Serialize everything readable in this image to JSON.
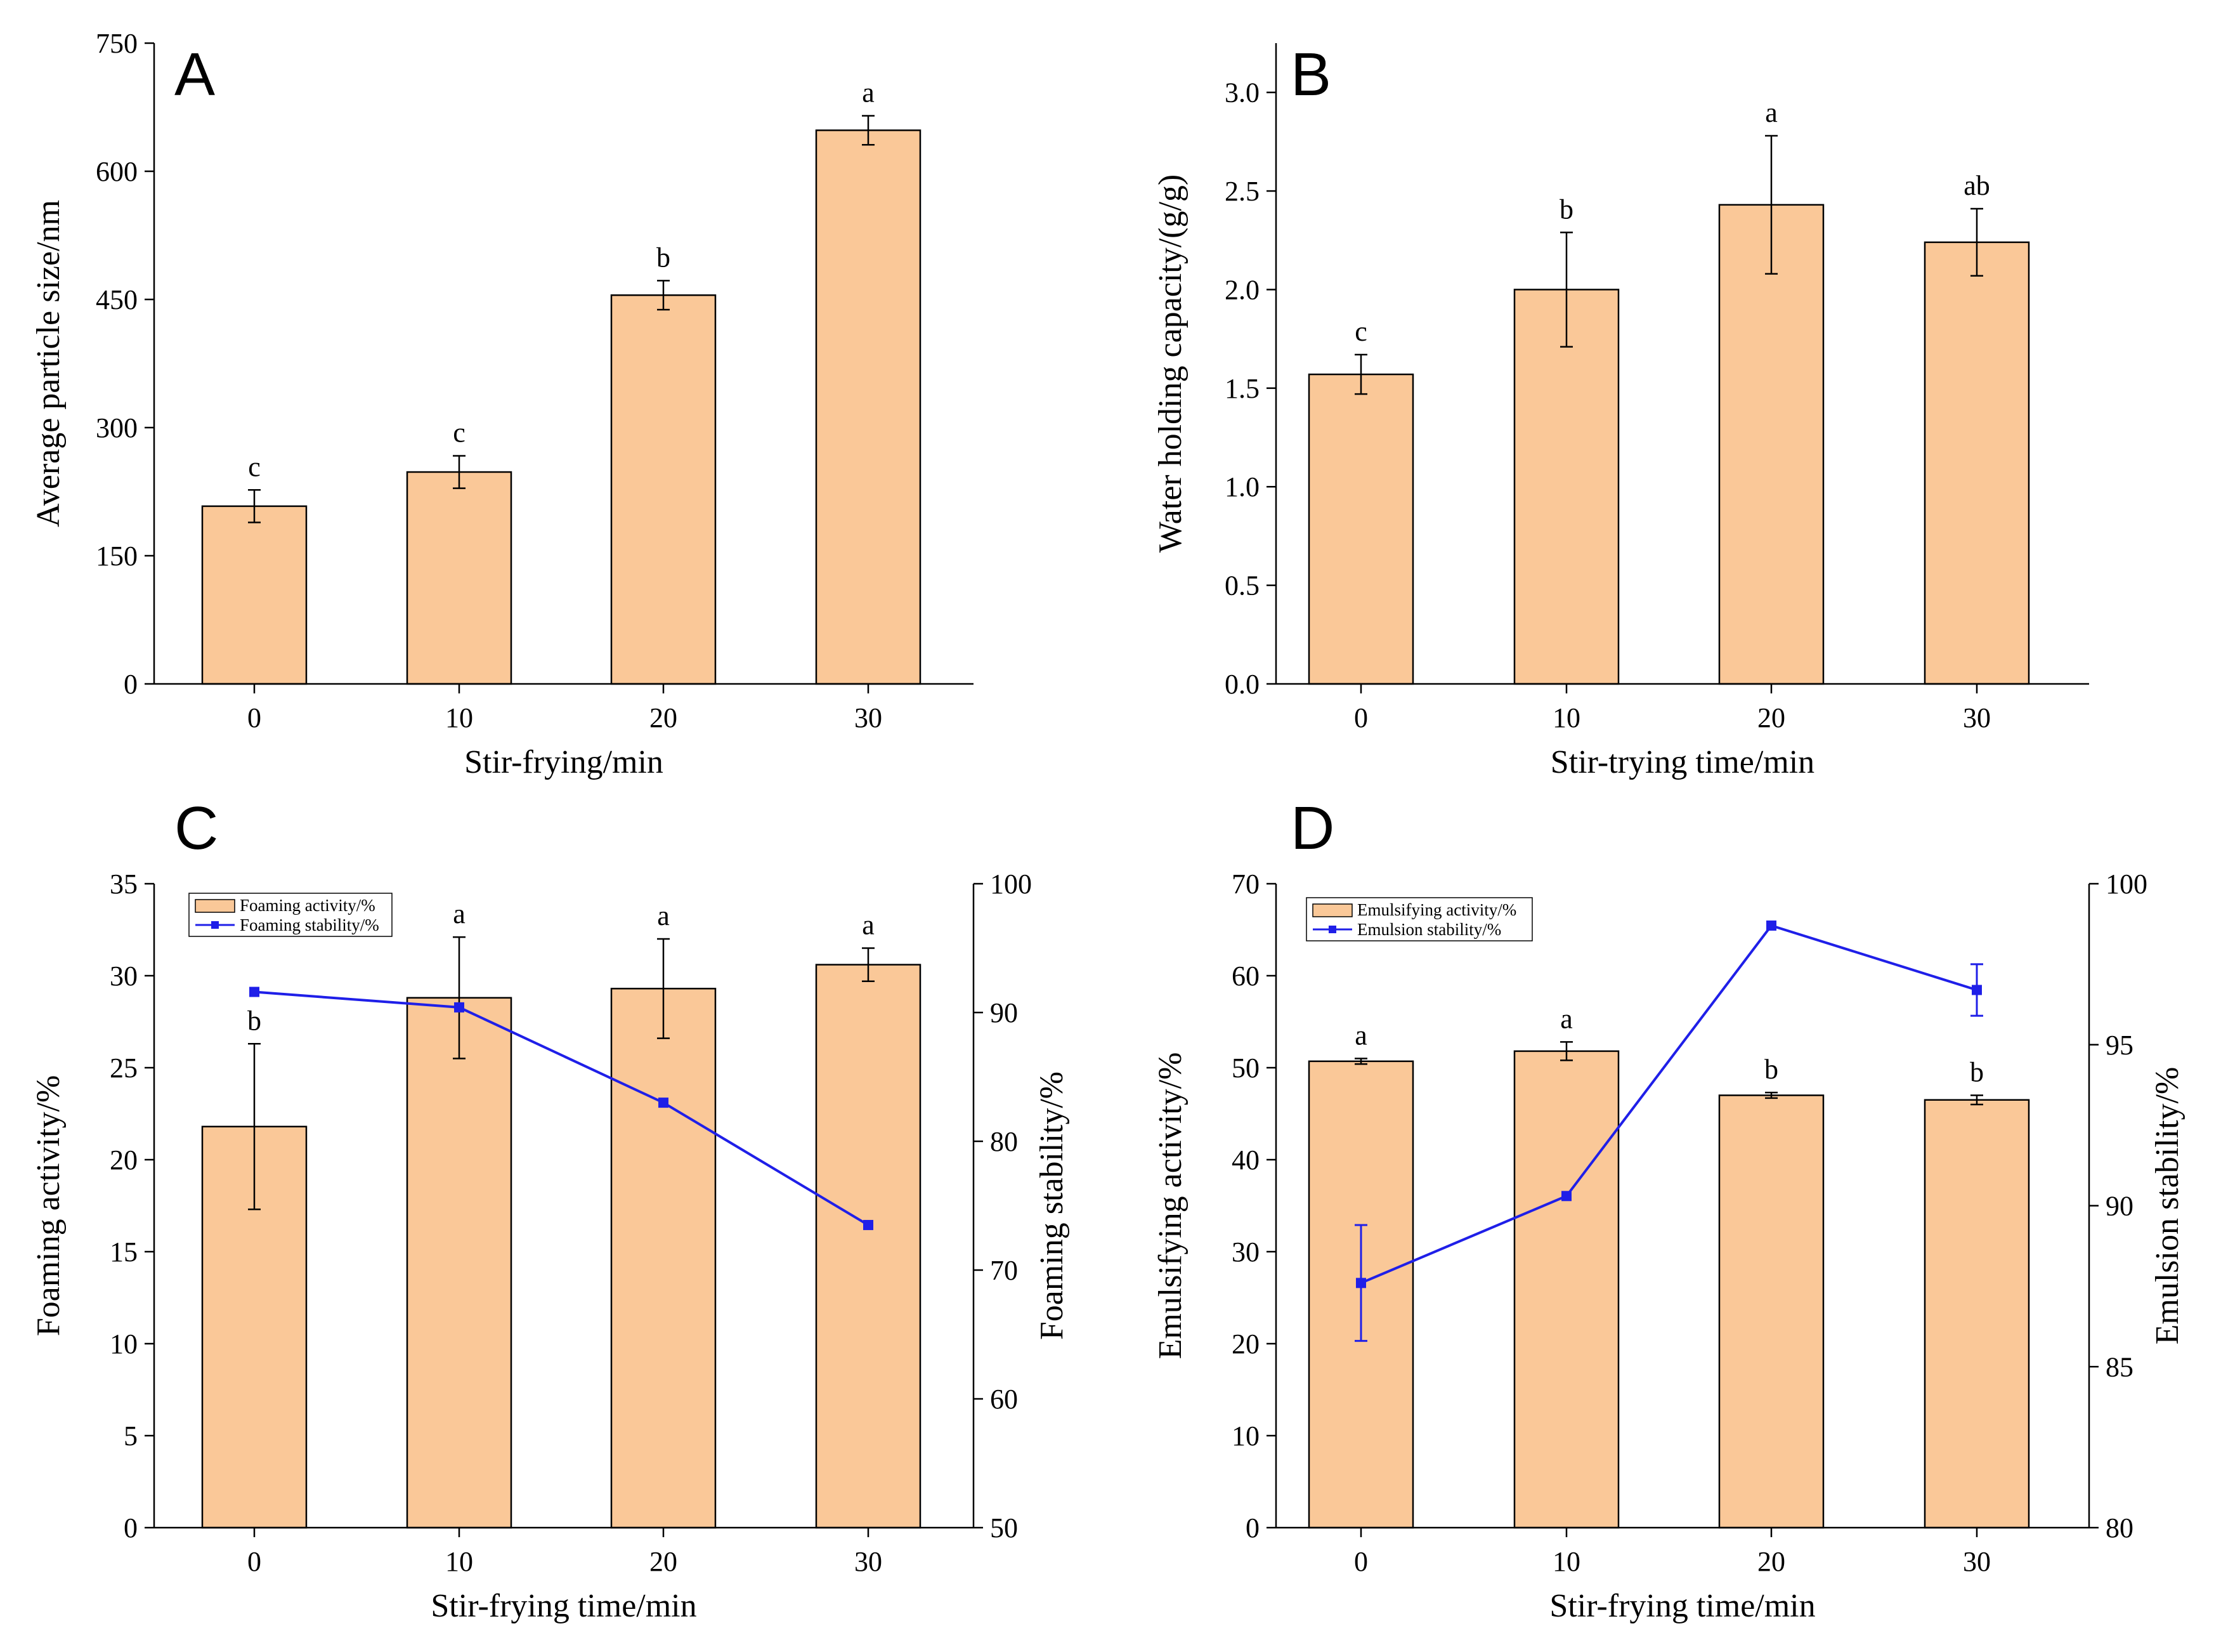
{
  "chart_data": [
    {
      "panel": "A",
      "type": "bar",
      "categories": [
        "0",
        "10",
        "20",
        "30"
      ],
      "xlabel": "Stir-frying/min",
      "ylabel": "Average particle size/nm",
      "ylim": [
        0,
        750
      ],
      "yticks": [
        "0",
        "150",
        "300",
        "450",
        "600",
        "750"
      ],
      "series": [
        {
          "name": "Average particle size/nm",
          "values": [
            208,
            248,
            455,
            648
          ],
          "errors": [
            19,
            19,
            17,
            17
          ],
          "letters": [
            "c",
            "c",
            "b",
            "a"
          ],
          "color": "#FAC898"
        }
      ]
    },
    {
      "panel": "B",
      "type": "bar",
      "categories": [
        "0",
        "10",
        "20",
        "30"
      ],
      "xlabel": "Stir-trying time/min",
      "ylabel": "Water holding capacity/(g/g)",
      "ylim": [
        0,
        3.25
      ],
      "yticks": [
        "0.0",
        "0.5",
        "1.0",
        "1.5",
        "2.0",
        "2.5",
        "3.0"
      ],
      "series": [
        {
          "name": "Water holding capacity/(g/g)",
          "values": [
            1.57,
            2.0,
            2.43,
            2.24
          ],
          "errors": [
            0.1,
            0.29,
            0.35,
            0.17
          ],
          "letters": [
            "c",
            "b",
            "a",
            "ab"
          ],
          "color": "#FAC898"
        }
      ]
    },
    {
      "panel": "C",
      "type": "bar",
      "categories": [
        "0",
        "10",
        "20",
        "30"
      ],
      "xlabel": "Stir-frying time/min",
      "ylabel": "Foaming activity/%",
      "y2label": "Foaming stability/%",
      "ylim": [
        0,
        35
      ],
      "y2lim": [
        50,
        100
      ],
      "yticks": [
        "0",
        "5",
        "10",
        "15",
        "20",
        "25",
        "30",
        "35"
      ],
      "y2ticks": [
        "50",
        "60",
        "70",
        "80",
        "90",
        "100"
      ],
      "series": [
        {
          "name": "Foaming activity/%",
          "values": [
            21.8,
            28.8,
            29.3,
            30.6
          ],
          "errors": [
            4.5,
            3.3,
            2.7,
            0.9
          ],
          "letters": [
            "b",
            "a",
            "a",
            "a"
          ],
          "color": "#FAC898"
        }
      ],
      "line_series": [
        {
          "name": "Foaming stability/%",
          "values": [
            91.6,
            90.4,
            83.0,
            73.5
          ],
          "color": "#1F1FE8"
        }
      ]
    },
    {
      "panel": "D",
      "type": "bar",
      "categories": [
        "0",
        "10",
        "20",
        "30"
      ],
      "xlabel": "Stir-frying time/min",
      "ylabel": "Emulsifying activity/%",
      "y2label": "Emulsion stability/%",
      "ylim": [
        0,
        70
      ],
      "y2lim": [
        80,
        100
      ],
      "yticks": [
        "0",
        "10",
        "20",
        "30",
        "40",
        "50",
        "60",
        "70"
      ],
      "y2ticks": [
        "80",
        "85",
        "90",
        "95",
        "100"
      ],
      "series": [
        {
          "name": "Emulsifying activity/%",
          "values": [
            50.7,
            51.8,
            47.0,
            46.5
          ],
          "errors": [
            0.3,
            1.0,
            0.3,
            0.5
          ],
          "letters": [
            "a",
            "a",
            "b",
            "b"
          ],
          "color": "#FAC898"
        }
      ],
      "line_series": [
        {
          "name": "Emulsion stability/%",
          "values": [
            87.6,
            90.3,
            98.7,
            96.7
          ],
          "errors": [
            1.8,
            0.1,
            0,
            0.8
          ],
          "color": "#1F1FE8"
        }
      ]
    }
  ]
}
